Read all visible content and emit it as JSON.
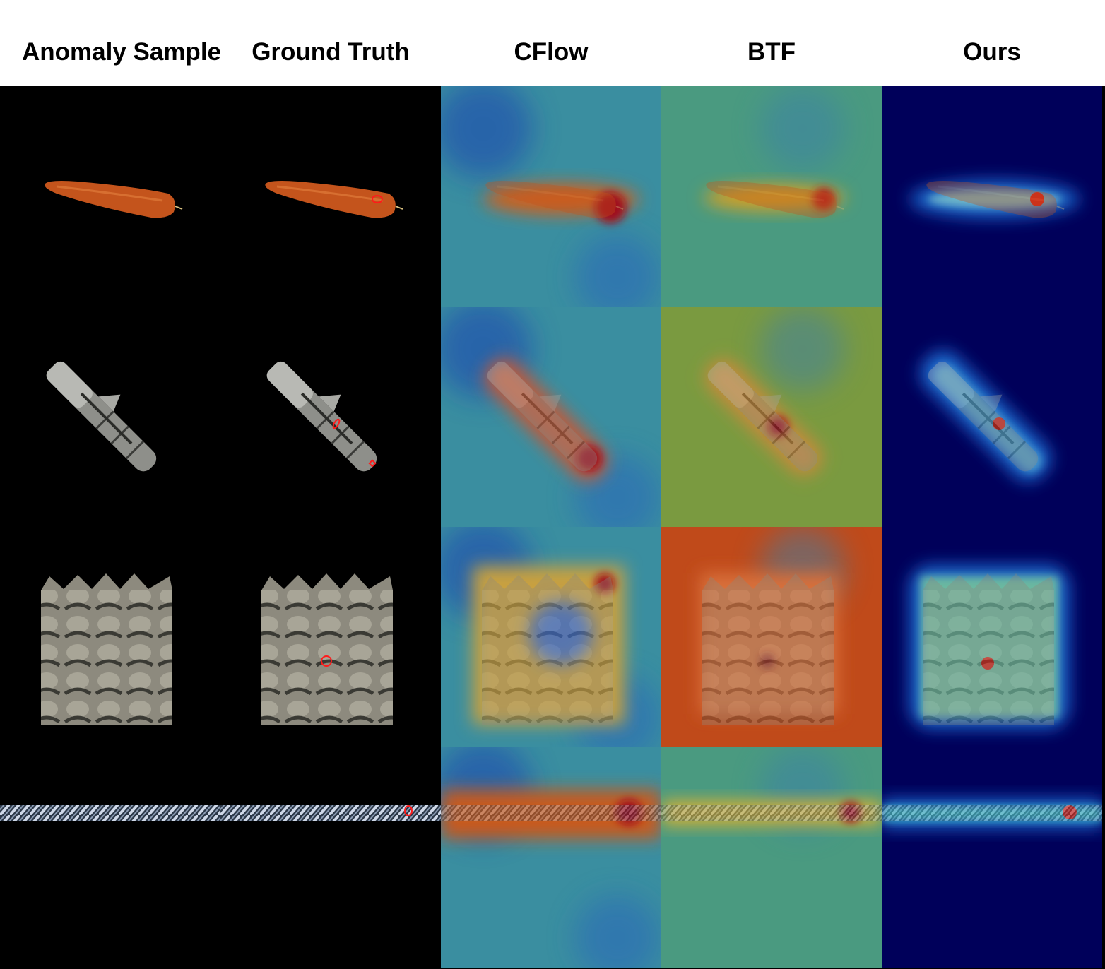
{
  "columns": [
    {
      "key": "sample",
      "title": "Anomaly Sample"
    },
    {
      "key": "gt",
      "title": "Ground Truth"
    },
    {
      "key": "cflow",
      "title": "CFlow"
    },
    {
      "key": "btf",
      "title": "BTF"
    },
    {
      "key": "ours",
      "title": "Ours"
    }
  ],
  "rows": [
    "carrot",
    "dowel",
    "foam",
    "rope"
  ],
  "colors": {
    "background": "#000000",
    "ground_truth_marker": "#ff1a1a",
    "heatmap_low": "#00005a",
    "heatmap_mid": "#3aa58a",
    "heatmap_high": "#d0221a"
  }
}
